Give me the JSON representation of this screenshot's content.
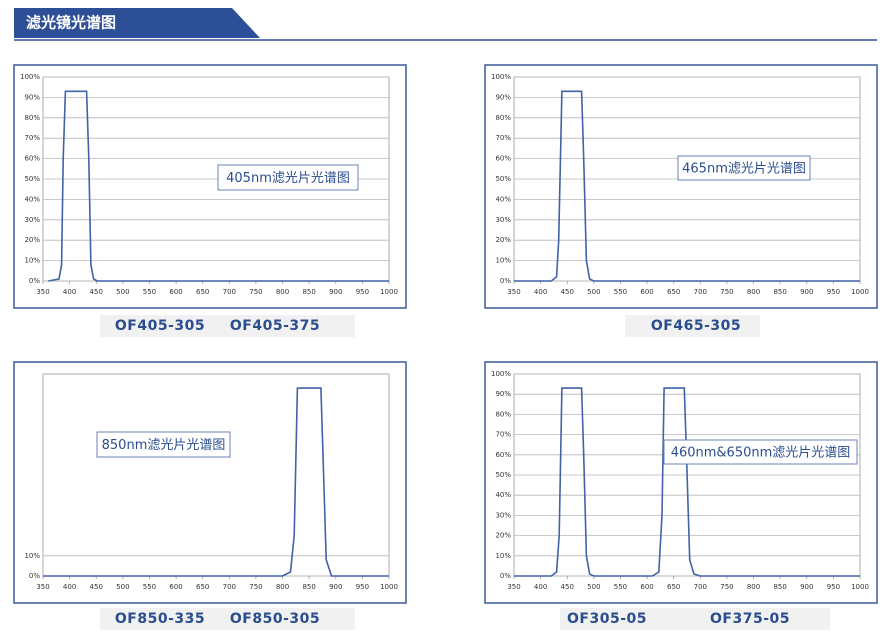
{
  "header": {
    "title": "滤光镜光谱图"
  },
  "chart_data": [
    {
      "type": "line",
      "annotation": "405nm滤光片光谱图",
      "models": [
        "OF405-305",
        "OF405-375"
      ],
      "x": [
        360,
        380,
        385,
        388,
        392,
        432,
        436,
        440,
        445,
        452,
        1000
      ],
      "values": [
        0,
        1,
        8,
        60,
        93,
        93,
        60,
        8,
        1,
        0,
        0
      ],
      "color": "#3f62a8",
      "xlim": [
        350,
        1000
      ],
      "ylim": [
        0,
        100
      ],
      "xticks": [
        350,
        400,
        450,
        500,
        550,
        600,
        650,
        700,
        750,
        800,
        850,
        900,
        950,
        1000
      ],
      "yticks": [
        {
          "value": 0,
          "label": "0%"
        },
        {
          "value": 10,
          "label": "10%"
        },
        {
          "value": 20,
          "label": "20%"
        },
        {
          "value": 30,
          "label": "30%"
        },
        {
          "value": 40,
          "label": "40%"
        },
        {
          "value": 50,
          "label": "50%"
        },
        {
          "value": 60,
          "label": "60%"
        },
        {
          "value": 70,
          "label": "70%"
        },
        {
          "value": 80,
          "label": "80%"
        },
        {
          "value": 90,
          "label": "90%"
        },
        {
          "value": 100,
          "label": "100%"
        }
      ],
      "grid": true
    },
    {
      "type": "line",
      "annotation": "465nm滤光片光谱图",
      "models": [
        "OF465-305"
      ],
      "x": [
        350,
        420,
        430,
        434,
        440,
        477,
        481,
        486,
        492,
        500,
        1000
      ],
      "values": [
        0,
        0,
        2,
        20,
        93,
        93,
        60,
        10,
        1,
        0,
        0
      ],
      "color": "#3f62a8",
      "xlim": [
        350,
        1000
      ],
      "ylim": [
        0,
        100
      ],
      "xticks": [
        350,
        400,
        450,
        500,
        550,
        600,
        650,
        700,
        750,
        800,
        850,
        900,
        950,
        1000
      ],
      "yticks": [
        {
          "value": 0,
          "label": "0%"
        },
        {
          "value": 10,
          "label": "10%"
        },
        {
          "value": 20,
          "label": "20%"
        },
        {
          "value": 30,
          "label": "30%"
        },
        {
          "value": 40,
          "label": "40%"
        },
        {
          "value": 50,
          "label": "50%"
        },
        {
          "value": 60,
          "label": "60%"
        },
        {
          "value": 70,
          "label": "70%"
        },
        {
          "value": 80,
          "label": "80%"
        },
        {
          "value": 90,
          "label": "90%"
        },
        {
          "value": 100,
          "label": "100%"
        }
      ],
      "grid": true
    },
    {
      "type": "line",
      "annotation": "850nm滤光片光谱图",
      "models": [
        "OF850-335",
        "OF850-305"
      ],
      "x": [
        350,
        800,
        815,
        822,
        828,
        872,
        876,
        882,
        892,
        1000
      ],
      "values": [
        0,
        0,
        2,
        20,
        93,
        93,
        60,
        8,
        0,
        0
      ],
      "color": "#3f62a8",
      "xlim": [
        350,
        1000
      ],
      "ylim": [
        0,
        100
      ],
      "xticks": [
        350,
        400,
        450,
        500,
        550,
        600,
        650,
        700,
        750,
        800,
        850,
        900,
        950,
        1000
      ],
      "yticks": [
        {
          "value": 0,
          "label": "0%"
        },
        {
          "value": 10,
          "label": "10%"
        }
      ],
      "grid": true
    },
    {
      "type": "line",
      "annotation": "460nm&650nm滤光片光谱图",
      "models": [
        "OF305-05",
        "OF375-05"
      ],
      "x": [
        350,
        420,
        430,
        435,
        440,
        477,
        481,
        486,
        492,
        500,
        610,
        622,
        628,
        632,
        670,
        674,
        680,
        688,
        700,
        1000
      ],
      "values": [
        0,
        0,
        2,
        20,
        93,
        93,
        60,
        10,
        1,
        0,
        0,
        2,
        30,
        93,
        93,
        60,
        8,
        1,
        0,
        0
      ],
      "color": "#3f62a8",
      "xlim": [
        350,
        1000
      ],
      "ylim": [
        0,
        100
      ],
      "xticks": [
        350,
        400,
        450,
        500,
        550,
        600,
        650,
        700,
        750,
        800,
        850,
        900,
        950,
        1000
      ],
      "yticks": [
        {
          "value": 0,
          "label": "0%"
        },
        {
          "value": 10,
          "label": "10%"
        },
        {
          "value": 20,
          "label": "20%"
        },
        {
          "value": 30,
          "label": "30%"
        },
        {
          "value": 40,
          "label": "40%"
        },
        {
          "value": 50,
          "label": "50%"
        },
        {
          "value": 60,
          "label": "60%"
        },
        {
          "value": 70,
          "label": "70%"
        },
        {
          "value": 80,
          "label": "80%"
        },
        {
          "value": 90,
          "label": "90%"
        },
        {
          "value": 100,
          "label": "100%"
        }
      ],
      "grid": true
    }
  ]
}
